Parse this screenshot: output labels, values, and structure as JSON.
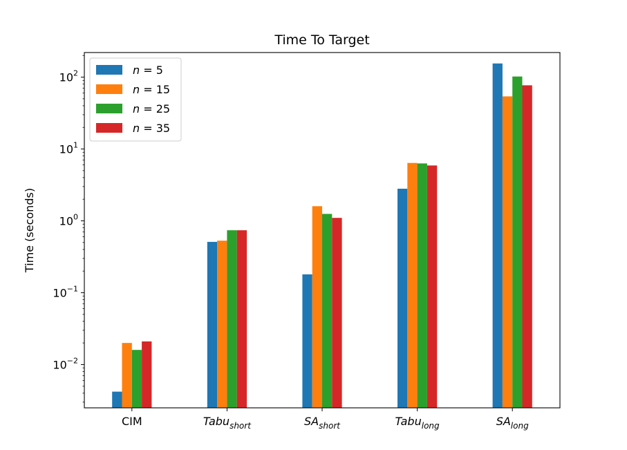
{
  "chart_data": {
    "type": "bar",
    "title": "Time To Target",
    "xlabel": "",
    "ylabel": "Time (seconds)",
    "yscale": "log",
    "ylim": [
      0.0025,
      220
    ],
    "yticks": [
      {
        "value": 0.01,
        "base": "10",
        "exp": "−2"
      },
      {
        "value": 0.1,
        "base": "10",
        "exp": "−1"
      },
      {
        "value": 1,
        "base": "10",
        "exp": "0"
      },
      {
        "value": 10,
        "base": "10",
        "exp": "1"
      },
      {
        "value": 100,
        "base": "10",
        "exp": "2"
      }
    ],
    "categories": [
      {
        "main": "CIM",
        "sub": ""
      },
      {
        "main": "Tabu",
        "sub": "short"
      },
      {
        "main": "SA",
        "sub": "short"
      },
      {
        "main": "Tabu",
        "sub": "long"
      },
      {
        "main": "SA",
        "sub": "long"
      }
    ],
    "series": [
      {
        "var": "n",
        "eq": " = ",
        "num": "5",
        "color": "#1f77b4",
        "values": [
          0.0042,
          0.51,
          0.18,
          2.8,
          155
        ]
      },
      {
        "var": "n",
        "eq": " = ",
        "num": "15",
        "color": "#ff7f0e",
        "values": [
          0.02,
          0.53,
          1.6,
          6.4,
          54
        ]
      },
      {
        "var": "n",
        "eq": " = ",
        "num": "25",
        "color": "#2ca02c",
        "values": [
          0.016,
          0.74,
          1.25,
          6.3,
          102
        ]
      },
      {
        "var": "n",
        "eq": " = ",
        "num": "35",
        "color": "#d62728",
        "values": [
          0.021,
          0.74,
          1.1,
          5.9,
          77
        ]
      }
    ],
    "legend_position": "top-left"
  }
}
